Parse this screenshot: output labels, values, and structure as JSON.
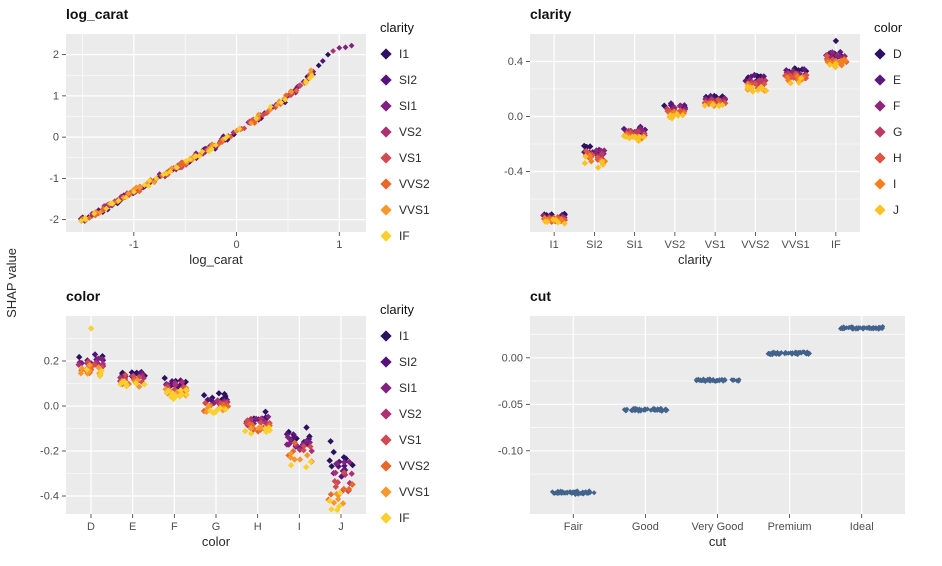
{
  "shared": {
    "ylabel": "SHAP value"
  },
  "colors": {
    "background": "#FFFFFF",
    "panel_bg": "#EBEBEB",
    "grid_major": "#FFFFFF",
    "grid_minor": "#FFFFFF",
    "tick_label": "#4D4D4D",
    "axis_tick": "#333333",
    "title": "#111111",
    "axis_label": "#2B2B2B"
  },
  "palettes": {
    "clarity": {
      "labels": [
        "I1",
        "SI2",
        "SI1",
        "VS2",
        "VS1",
        "VVS2",
        "VVS1",
        "IF"
      ],
      "colors": [
        "#2B115E",
        "#55127B",
        "#81217F",
        "#AC3073",
        "#D04A53",
        "#EA6827",
        "#F7982C",
        "#FBCF2C"
      ]
    },
    "color": {
      "labels": [
        "D",
        "E",
        "F",
        "G",
        "H",
        "I",
        "J"
      ],
      "colors": [
        "#2B115E",
        "#5C167D",
        "#8E2578",
        "#BC3A63",
        "#DE5541",
        "#F37F1F",
        "#FBC227"
      ]
    },
    "cut": "#41638C"
  },
  "chart_data": [
    {
      "type": "scatter",
      "title": "log_carat",
      "xlabel": "log_carat",
      "x_domain": [
        -1.66,
        1.26
      ],
      "x_ticks": [
        -1,
        0,
        1
      ],
      "x_tick_labels": [
        "-1",
        "0",
        "1"
      ],
      "y_domain": [
        -2.3,
        2.5
      ],
      "y_ticks": [
        -2,
        -1,
        0,
        1,
        2
      ],
      "y_tick_labels": [
        "-2",
        "-1",
        "0",
        "1",
        "2"
      ],
      "legend": {
        "title": "clarity",
        "palette": "clarity"
      },
      "color_palette": "clarity",
      "point_radius": 2.9,
      "band_sd": 0.045,
      "n_points": 310,
      "sample_x_range": [
        -1.52,
        0.76
      ],
      "curve": [
        [
          -1.52,
          -2.04
        ],
        [
          -1.35,
          -1.82
        ],
        [
          -1.2,
          -1.6
        ],
        [
          -1.05,
          -1.4
        ],
        [
          -0.9,
          -1.18
        ],
        [
          -0.75,
          -0.97
        ],
        [
          -0.6,
          -0.76
        ],
        [
          -0.45,
          -0.55
        ],
        [
          -0.3,
          -0.33
        ],
        [
          -0.15,
          -0.1
        ],
        [
          0,
          0.13
        ],
        [
          0.15,
          0.37
        ],
        [
          0.3,
          0.61
        ],
        [
          0.45,
          0.88
        ],
        [
          0.6,
          1.2
        ],
        [
          0.7,
          1.45
        ],
        [
          0.8,
          1.75
        ],
        [
          0.88,
          1.97
        ],
        [
          0.95,
          2.1
        ],
        [
          1.03,
          2.17
        ],
        [
          1.12,
          2.23
        ]
      ],
      "extra_x": [
        0.8,
        0.84,
        0.89,
        0.94,
        1.0,
        1.06,
        1.12
      ]
    },
    {
      "type": "strip",
      "title": "clarity",
      "xlabel": "clarity",
      "categories": [
        "I1",
        "SI2",
        "SI1",
        "VS2",
        "VS1",
        "VVS2",
        "VVS1",
        "IF"
      ],
      "means": [
        -0.74,
        -0.28,
        -0.12,
        0.04,
        0.11,
        0.24,
        0.3,
        0.42
      ],
      "spreads": [
        0.022,
        0.05,
        0.032,
        0.032,
        0.026,
        0.04,
        0.032,
        0.04
      ],
      "y_domain": [
        -0.84,
        0.6
      ],
      "y_ticks": [
        -0.4,
        0,
        0.4
      ],
      "y_tick_labels": [
        "-0.4",
        "0.0",
        "0.4"
      ],
      "legend": {
        "title": "color",
        "palette": "color"
      },
      "color_palette": "color",
      "points_per_category": 46,
      "x_jitter": 0.27,
      "point_radius": 3.2,
      "outliers": [
        {
          "category": "IF",
          "value": 0.55,
          "color_index": 0
        }
      ]
    },
    {
      "type": "strip",
      "title": "color",
      "xlabel": "color",
      "categories": [
        "D",
        "E",
        "F",
        "G",
        "H",
        "I",
        "J"
      ],
      "means": [
        0.18,
        0.12,
        0.08,
        0.01,
        -0.08,
        -0.19,
        -0.33
      ],
      "spreads": [
        0.032,
        0.022,
        0.026,
        0.026,
        0.032,
        0.05,
        0.095
      ],
      "y_domain": [
        -0.48,
        0.4
      ],
      "y_ticks": [
        -0.4,
        -0.2,
        0,
        0.2
      ],
      "y_tick_labels": [
        "-0.4",
        "-0.2",
        "0.0",
        "0.2"
      ],
      "legend": {
        "title": "clarity",
        "palette": "clarity"
      },
      "color_palette": "clarity",
      "points_per_category": 46,
      "x_jitter": 0.3,
      "point_radius": 3.2,
      "outliers": [
        {
          "category": "D",
          "value": 0.345,
          "color_index": 7
        }
      ]
    },
    {
      "type": "strip",
      "title": "cut",
      "xlabel": "cut",
      "categories": [
        "Fair",
        "Good",
        "Very Good",
        "Premium",
        "Ideal"
      ],
      "means": [
        -0.145,
        -0.056,
        -0.024,
        0.005,
        0.032
      ],
      "spreads": [
        0.002,
        0.0018,
        0.0018,
        0.0018,
        0.0018
      ],
      "y_domain": [
        -0.168,
        0.045
      ],
      "y_ticks": [
        -0.1,
        -0.05,
        0
      ],
      "y_tick_labels": [
        "-0.10",
        "-0.05",
        "0.00"
      ],
      "single_color": "cut",
      "points_per_category": 60,
      "x_jitter": 0.3,
      "point_radius": 2.5
    }
  ]
}
